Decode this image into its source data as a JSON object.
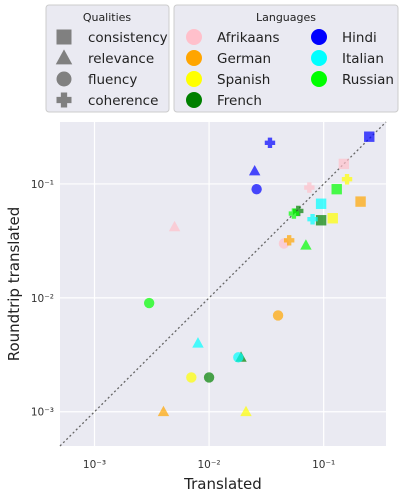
{
  "chart_data": {
    "type": "scatter",
    "xlabel": "Translated",
    "ylabel": "Roundtrip translated",
    "xscale": "log",
    "yscale": "log",
    "xlim": [
      0.0005,
      0.35
    ],
    "ylim": [
      0.0005,
      0.35
    ],
    "xticks": [
      {
        "value": 0.001,
        "label": "10⁻³"
      },
      {
        "value": 0.01,
        "label": "10⁻²"
      },
      {
        "value": 0.1,
        "label": "10⁻¹"
      }
    ],
    "yticks": [
      {
        "value": 0.001,
        "label": "10⁻³"
      },
      {
        "value": 0.01,
        "label": "10⁻²"
      },
      {
        "value": 0.1,
        "label": "10⁻¹"
      }
    ],
    "grid": true,
    "diagonal_reference": true,
    "legend_qualities": {
      "title": "Qualities",
      "entries": [
        {
          "label": "consistency",
          "marker": "square"
        },
        {
          "label": "relevance",
          "marker": "triangle"
        },
        {
          "label": "fluency",
          "marker": "circle"
        },
        {
          "label": "coherence",
          "marker": "plus"
        }
      ]
    },
    "legend_languages": {
      "title": "Languages",
      "entries": [
        {
          "label": "Afrikaans",
          "color": "#ffc0cb"
        },
        {
          "label": "German",
          "color": "#ffa500"
        },
        {
          "label": "Spanish",
          "color": "#ffff00"
        },
        {
          "label": "French",
          "color": "#008000"
        },
        {
          "label": "Hindi",
          "color": "#0000ff"
        },
        {
          "label": "Italian",
          "color": "#00ffff"
        },
        {
          "label": "Russian",
          "color": "#00ff00"
        }
      ]
    },
    "points": [
      {
        "language": "Afrikaans",
        "quality": "consistency",
        "x": 0.15,
        "y": 0.15
      },
      {
        "language": "Afrikaans",
        "quality": "relevance",
        "x": 0.005,
        "y": 0.042
      },
      {
        "language": "Afrikaans",
        "quality": "fluency",
        "x": 0.045,
        "y": 0.03
      },
      {
        "language": "Afrikaans",
        "quality": "coherence",
        "x": 0.075,
        "y": 0.093
      },
      {
        "language": "German",
        "quality": "consistency",
        "x": 0.21,
        "y": 0.07
      },
      {
        "language": "German",
        "quality": "relevance",
        "x": 0.004,
        "y": 0.001
      },
      {
        "language": "German",
        "quality": "fluency",
        "x": 0.04,
        "y": 0.007
      },
      {
        "language": "German",
        "quality": "coherence",
        "x": 0.05,
        "y": 0.032
      },
      {
        "language": "Spanish",
        "quality": "consistency",
        "x": 0.12,
        "y": 0.05
      },
      {
        "language": "Spanish",
        "quality": "relevance",
        "x": 0.021,
        "y": 0.001
      },
      {
        "language": "Spanish",
        "quality": "fluency",
        "x": 0.007,
        "y": 0.002
      },
      {
        "language": "Spanish",
        "quality": "coherence",
        "x": 0.16,
        "y": 0.11
      },
      {
        "language": "French",
        "quality": "consistency",
        "x": 0.095,
        "y": 0.048
      },
      {
        "language": "French",
        "quality": "relevance",
        "x": 0.019,
        "y": 0.003
      },
      {
        "language": "French",
        "quality": "fluency",
        "x": 0.01,
        "y": 0.002
      },
      {
        "language": "French",
        "quality": "coherence",
        "x": 0.06,
        "y": 0.058
      },
      {
        "language": "Hindi",
        "quality": "consistency",
        "x": 0.25,
        "y": 0.26
      },
      {
        "language": "Hindi",
        "quality": "relevance",
        "x": 0.025,
        "y": 0.13
      },
      {
        "language": "Hindi",
        "quality": "fluency",
        "x": 0.026,
        "y": 0.09
      },
      {
        "language": "Hindi",
        "quality": "coherence",
        "x": 0.034,
        "y": 0.23
      },
      {
        "language": "Italian",
        "quality": "consistency",
        "x": 0.095,
        "y": 0.067
      },
      {
        "language": "Italian",
        "quality": "relevance",
        "x": 0.008,
        "y": 0.004
      },
      {
        "language": "Italian",
        "quality": "fluency",
        "x": 0.018,
        "y": 0.003
      },
      {
        "language": "Italian",
        "quality": "coherence",
        "x": 0.08,
        "y": 0.049
      },
      {
        "language": "Russian",
        "quality": "consistency",
        "x": 0.13,
        "y": 0.09
      },
      {
        "language": "Russian",
        "quality": "relevance",
        "x": 0.07,
        "y": 0.029
      },
      {
        "language": "Russian",
        "quality": "fluency",
        "x": 0.003,
        "y": 0.009
      },
      {
        "language": "Russian",
        "quality": "coherence",
        "x": 0.055,
        "y": 0.055
      }
    ]
  }
}
